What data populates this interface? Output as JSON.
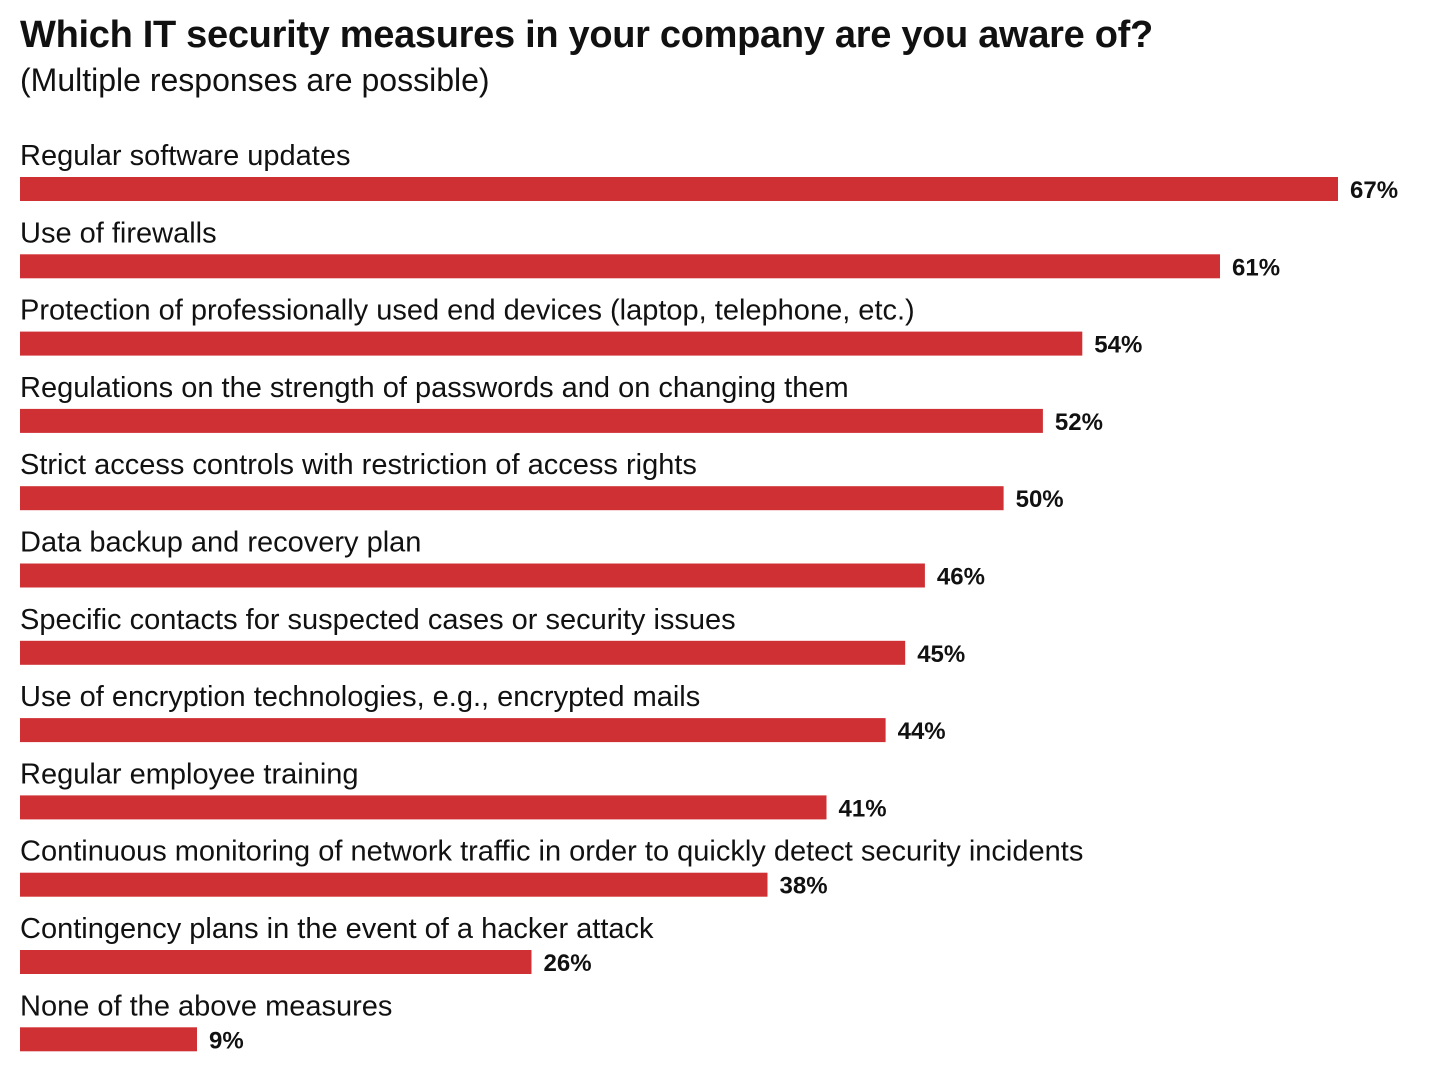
{
  "title": "Which IT security measures in your company are you aware of?",
  "subtitle": "(Multiple responses are possible)",
  "colors": {
    "bar": "#cf3034",
    "text": "#111111"
  },
  "chart_data": {
    "type": "bar",
    "orientation": "horizontal",
    "title": "Which IT security measures in your company are you aware of?",
    "subtitle": "(Multiple responses are possible)",
    "value_suffix": "%",
    "xlim": [
      0,
      67
    ],
    "grid": false,
    "categories": [
      "Regular software updates",
      "Use of firewalls",
      "Protection of professionally used end devices (laptop, telephone, etc.)",
      "Regulations on the strength of passwords and on changing them",
      "Strict access controls with restriction of access rights",
      "Data backup and recovery plan",
      "Specific contacts for suspected cases or security issues",
      "Use of encryption technologies, e.g., encrypted mails",
      "Regular employee training",
      "Continuous monitoring of network traffic in order to quickly detect security incidents",
      "Contingency plans in the event of a hacker attack",
      "None of the above measures"
    ],
    "values": [
      67,
      61,
      54,
      52,
      50,
      46,
      45,
      44,
      41,
      38,
      26,
      9
    ],
    "value_labels": [
      "67%",
      "61%",
      "54%",
      "52%",
      "50%",
      "46%",
      "45%",
      "44%",
      "41%",
      "38%",
      "26%",
      "9%"
    ]
  }
}
